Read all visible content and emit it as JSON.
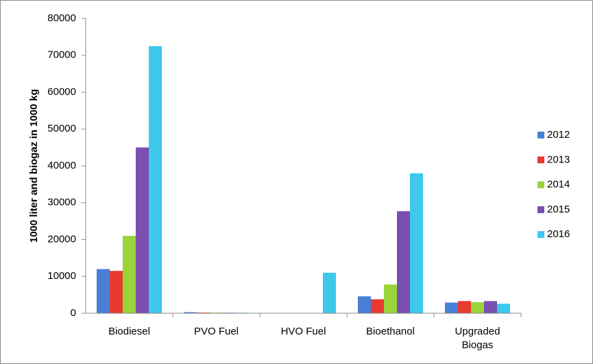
{
  "chart_data": {
    "type": "bar",
    "ylabel": "1000 liter and biogaz in 1000 kg",
    "categories": [
      "Biodiesel",
      "PVO Fuel",
      "HVO Fuel",
      "Bioethanol",
      "Upgraded Biogas"
    ],
    "series": [
      {
        "name": "2012",
        "color": "#4a7fd8",
        "values": [
          12000,
          300,
          0,
          4600,
          2900
        ]
      },
      {
        "name": "2013",
        "color": "#e83a2f",
        "values": [
          11500,
          200,
          0,
          3800,
          3300
        ]
      },
      {
        "name": "2014",
        "color": "#9ad43a",
        "values": [
          21000,
          200,
          0,
          7800,
          3000
        ]
      },
      {
        "name": "2015",
        "color": "#7b4fb0",
        "values": [
          45000,
          150,
          0,
          27700,
          3300
        ]
      },
      {
        "name": "2016",
        "color": "#3ec9ec",
        "values": [
          72500,
          150,
          11000,
          38000,
          2600
        ]
      }
    ],
    "ylim": [
      0,
      80000
    ],
    "yticks": [
      0,
      10000,
      20000,
      30000,
      40000,
      50000,
      60000,
      70000,
      80000
    ],
    "legend": "right"
  }
}
